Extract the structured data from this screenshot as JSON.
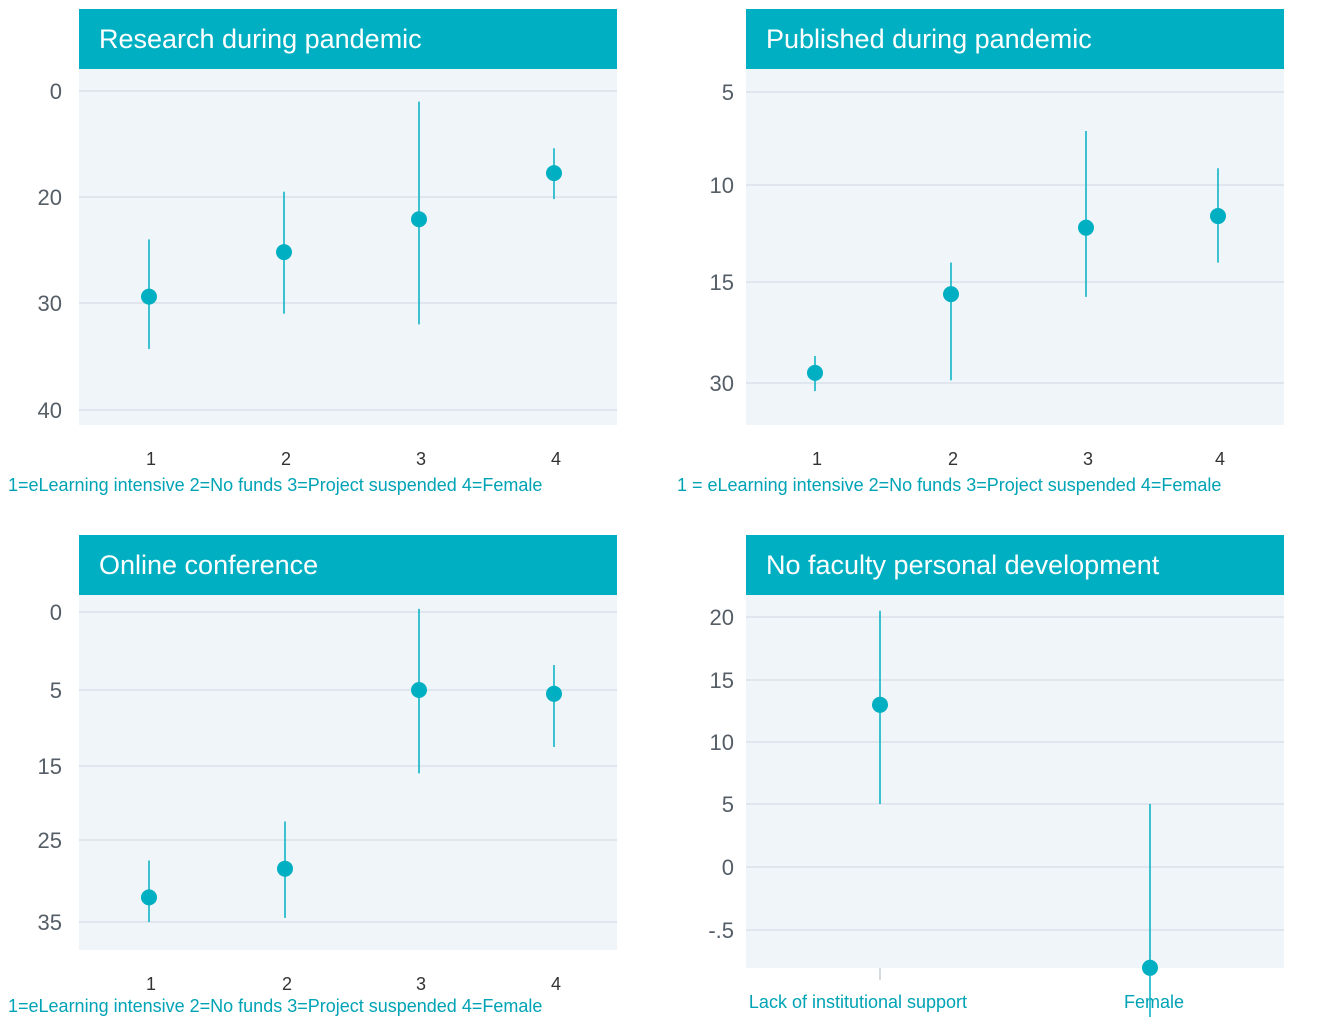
{
  "colors": {
    "accent": "#00b0c2",
    "plot_bg": "#f0f5fa",
    "grid": "#cfd8e0",
    "marker": "#00b0c2"
  },
  "chart_data": [
    {
      "type": "scatter",
      "title": "Research during pandemic",
      "xlabel": "1=eLearning intensive 2=No funds 3=Project suspended 4=Female",
      "ylabel": "",
      "x_ticks": [
        "1",
        "2",
        "3",
        "4"
      ],
      "y_ticks": [
        "0",
        "20",
        "30",
        "40"
      ],
      "points": [
        {
          "x": "1",
          "y": 29.4,
          "low": 24.0,
          "high": 34.3
        },
        {
          "x": "2",
          "y": 25.2,
          "low": 19.0,
          "high": 31.0
        },
        {
          "x": "3",
          "y": 22.1,
          "low": 2.0,
          "high": 32.0
        },
        {
          "x": "4",
          "y": 15.5,
          "low": 10.8,
          "high": 20.2
        }
      ],
      "grid": true
    },
    {
      "type": "scatter",
      "title": "Published during pandemic",
      "xlabel": "1 = eLearning intensive 2=No funds 3=Project suspended 4=Female",
      "ylabel": "",
      "x_ticks": [
        "1",
        "2",
        "3",
        "4"
      ],
      "y_ticks": [
        "5",
        "10",
        "15",
        "30"
      ],
      "points": [
        {
          "x": "1",
          "y": 28.5,
          "low": 26.0,
          "high": 31.2
        },
        {
          "x": "2",
          "y": 16.8,
          "low": 14.0,
          "high": 29.6
        },
        {
          "x": "3",
          "y": 12.2,
          "low": 7.1,
          "high": 17.2
        },
        {
          "x": "4",
          "y": 11.6,
          "low": 9.1,
          "high": 14.0
        }
      ],
      "grid": true
    },
    {
      "type": "scatter",
      "title": "Online conference",
      "xlabel": "1=eLearning intensive 2=No funds 3=Project suspended 4=Female",
      "ylabel": "",
      "x_ticks": [
        "1",
        "2",
        "3",
        "4"
      ],
      "y_ticks": [
        "0",
        "5",
        "15",
        "25",
        "35"
      ],
      "points": [
        {
          "x": "1",
          "y": 32.0,
          "low": 27.5,
          "high": 35.0
        },
        {
          "x": "2",
          "y": 28.5,
          "low": 22.5,
          "high": 34.5
        },
        {
          "x": "3",
          "y": 5.0,
          "low": -0.2,
          "high": 16.0
        },
        {
          "x": "4",
          "y": 5.5,
          "low": 3.4,
          "high": 12.5
        }
      ],
      "grid": true
    },
    {
      "type": "scatter",
      "title": "No faculty personal development",
      "xlabel": "",
      "ylabel": "",
      "x_ticks": [
        "Lack of institutional support",
        "Female"
      ],
      "y_ticks": [
        "20",
        "15",
        "10",
        "5",
        "0",
        "-.5"
      ],
      "points": [
        {
          "x": "Lack of institutional support",
          "y": 13.0,
          "low": 5.0,
          "high": 20.5
        },
        {
          "x": "Female",
          "y": -0.8,
          "low": -6.2,
          "high": 5.0
        }
      ],
      "grid": true
    }
  ]
}
